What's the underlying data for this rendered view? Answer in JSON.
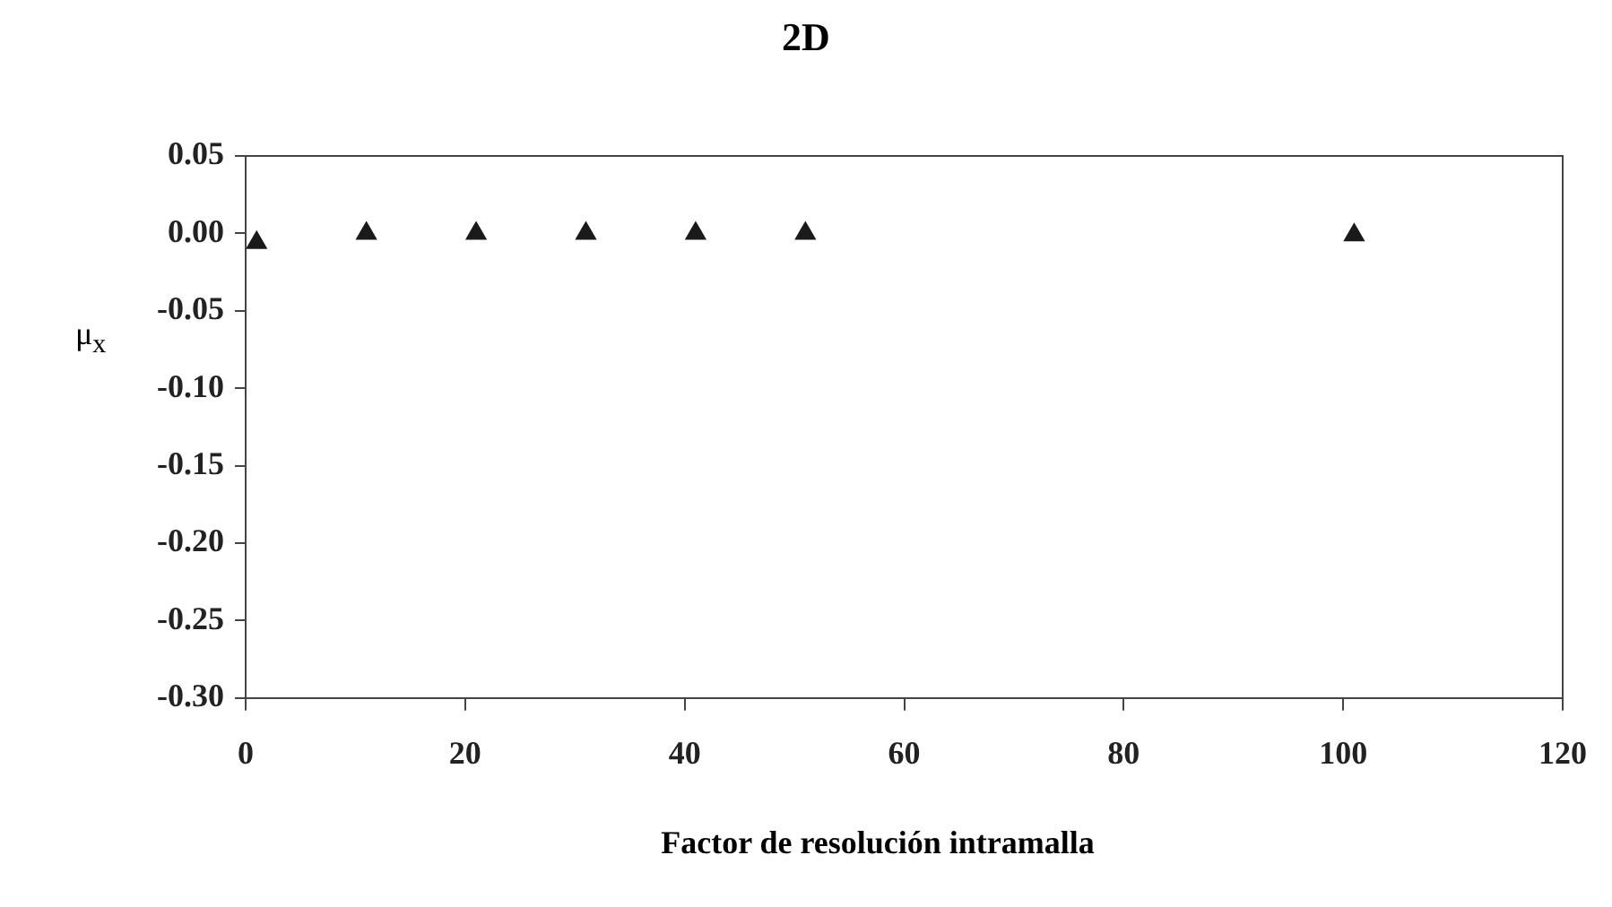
{
  "chart_data": {
    "type": "scatter",
    "title": "2D",
    "xlabel": "Factor de resolución intramalla",
    "ylabel": "μ$_{x}$",
    "x": [
      1,
      11,
      21,
      31,
      41,
      51,
      101
    ],
    "series": [
      {
        "color": "#1a1a1a",
        "values": [
          -0.006,
          0,
          0,
          0,
          0,
          0,
          -0.001
        ]
      }
    ],
    "xlim": [
      0,
      120
    ],
    "xticks": [
      0,
      20,
      40,
      60,
      80,
      100,
      120
    ],
    "ylim": [
      -0.3,
      0.05
    ],
    "yticks": [
      {
        "value": 0.05,
        "label": "0.05"
      },
      {
        "value": 0,
        "label": "0.00"
      },
      {
        "value": -0.05,
        "label": "-0.05"
      },
      {
        "value": -0.1,
        "label": "-0.10"
      },
      {
        "value": -0.15,
        "label": "-0.15"
      },
      {
        "value": -0.2,
        "label": "-0.20"
      },
      {
        "value": -0.25,
        "label": "-0.25"
      },
      {
        "value": -0.3,
        "label": "-0.30"
      }
    ],
    "grid": false,
    "legend": false,
    "marker": "triangle"
  }
}
